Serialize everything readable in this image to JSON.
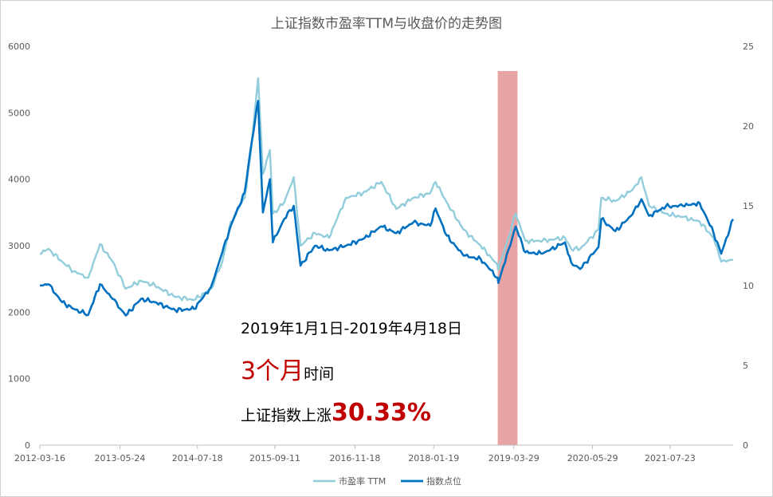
{
  "chart_data": {
    "type": "line",
    "title": "上证指数市盈率TTM与收盘价的走势图",
    "x_ticks": [
      "2012-03-16",
      "2013-05-24",
      "2014-07-18",
      "2015-09-11",
      "2016-11-18",
      "2018-01-19",
      "2019-03-29",
      "2020-05-29",
      "2021-07-23"
    ],
    "x_range": [
      "2012-03-16",
      "2022-06-30"
    ],
    "y_left": {
      "min": 0,
      "max": 6000,
      "ticks": [
        "0",
        "1000",
        "2000",
        "3000",
        "4000",
        "5000",
        "6000"
      ]
    },
    "y_right": {
      "min": 0,
      "max": 25,
      "ticks": [
        "0",
        "5",
        "10",
        "15",
        "20",
        "25"
      ]
    },
    "highlight": {
      "start": "2019-01-01",
      "end": "2019-04-18",
      "color": "#e8a4a4"
    },
    "series": [
      {
        "name": "市盈率 TTM",
        "axis": "right",
        "color": "#92cddc",
        "points": [
          [
            "2012-03-16",
            12.0
          ],
          [
            "2012-05-01",
            12.3
          ],
          [
            "2012-07-15",
            11.5
          ],
          [
            "2012-09-15",
            10.9
          ],
          [
            "2012-12-03",
            10.5
          ],
          [
            "2013-02-05",
            12.6
          ],
          [
            "2013-04-15",
            11.5
          ],
          [
            "2013-06-25",
            9.8
          ],
          [
            "2013-09-15",
            10.3
          ],
          [
            "2013-11-30",
            10.0
          ],
          [
            "2014-03-20",
            9.3
          ],
          [
            "2014-06-30",
            9.1
          ],
          [
            "2014-09-30",
            9.8
          ],
          [
            "2014-11-30",
            11.5
          ],
          [
            "2015-01-15",
            14.0
          ],
          [
            "2015-03-31",
            15.5
          ],
          [
            "2015-04-30",
            18.0
          ],
          [
            "2015-06-12",
            23.0
          ],
          [
            "2015-07-08",
            17.0
          ],
          [
            "2015-08-15",
            18.5
          ],
          [
            "2015-08-31",
            14.5
          ],
          [
            "2015-10-31",
            15.2
          ],
          [
            "2015-12-22",
            16.8
          ],
          [
            "2016-01-28",
            12.5
          ],
          [
            "2016-04-15",
            13.3
          ],
          [
            "2016-06-30",
            13.0
          ],
          [
            "2016-09-30",
            15.5
          ],
          [
            "2016-12-31",
            15.8
          ],
          [
            "2017-04-10",
            16.5
          ],
          [
            "2017-06-30",
            14.8
          ],
          [
            "2017-09-30",
            15.5
          ],
          [
            "2017-12-31",
            15.8
          ],
          [
            "2018-01-29",
            16.5
          ],
          [
            "2018-03-31",
            15.2
          ],
          [
            "2018-06-30",
            13.5
          ],
          [
            "2018-09-30",
            12.5
          ],
          [
            "2018-12-31",
            11.3
          ],
          [
            "2019-01-04",
            11.0
          ],
          [
            "2019-02-28",
            13.0
          ],
          [
            "2019-04-08",
            14.5
          ],
          [
            "2019-05-31",
            12.8
          ],
          [
            "2019-08-31",
            12.8
          ],
          [
            "2019-12-31",
            13.0
          ],
          [
            "2020-02-03",
            12.3
          ],
          [
            "2020-03-23",
            12.3
          ],
          [
            "2020-06-30",
            13.5
          ],
          [
            "2020-07-15",
            15.5
          ],
          [
            "2020-09-30",
            15.3
          ],
          [
            "2020-12-31",
            16.0
          ],
          [
            "2021-02-18",
            16.8
          ],
          [
            "2021-03-31",
            15.0
          ],
          [
            "2021-06-30",
            14.5
          ],
          [
            "2021-09-30",
            14.3
          ],
          [
            "2021-12-31",
            14.0
          ],
          [
            "2022-03-15",
            13.0
          ],
          [
            "2022-04-26",
            11.5
          ],
          [
            "2022-06-30",
            11.6
          ]
        ]
      },
      {
        "name": "指数点位",
        "axis": "left",
        "color": "#0070c0",
        "points": [
          [
            "2012-03-16",
            2400
          ],
          [
            "2012-05-01",
            2420
          ],
          [
            "2012-07-15",
            2150
          ],
          [
            "2012-09-15",
            2050
          ],
          [
            "2012-12-03",
            1960
          ],
          [
            "2013-02-05",
            2420
          ],
          [
            "2013-04-15",
            2200
          ],
          [
            "2013-06-25",
            1950
          ],
          [
            "2013-09-15",
            2200
          ],
          [
            "2013-11-30",
            2150
          ],
          [
            "2014-03-20",
            2030
          ],
          [
            "2014-06-30",
            2050
          ],
          [
            "2014-09-30",
            2380
          ],
          [
            "2014-11-30",
            2900
          ],
          [
            "2015-01-15",
            3300
          ],
          [
            "2015-03-31",
            3800
          ],
          [
            "2015-04-30",
            4400
          ],
          [
            "2015-06-12",
            5178
          ],
          [
            "2015-07-08",
            3500
          ],
          [
            "2015-08-15",
            4000
          ],
          [
            "2015-08-31",
            3050
          ],
          [
            "2015-10-31",
            3400
          ],
          [
            "2015-12-22",
            3600
          ],
          [
            "2016-01-28",
            2700
          ],
          [
            "2016-04-15",
            3000
          ],
          [
            "2016-06-30",
            2930
          ],
          [
            "2016-09-30",
            3000
          ],
          [
            "2016-12-31",
            3100
          ],
          [
            "2017-04-10",
            3290
          ],
          [
            "2017-06-30",
            3190
          ],
          [
            "2017-09-30",
            3350
          ],
          [
            "2017-12-31",
            3300
          ],
          [
            "2018-01-29",
            3560
          ],
          [
            "2018-03-31",
            3150
          ],
          [
            "2018-06-30",
            2850
          ],
          [
            "2018-09-30",
            2800
          ],
          [
            "2018-12-31",
            2520
          ],
          [
            "2019-01-04",
            2440
          ],
          [
            "2019-02-28",
            2940
          ],
          [
            "2019-04-08",
            3288
          ],
          [
            "2019-05-31",
            2900
          ],
          [
            "2019-08-31",
            2880
          ],
          [
            "2019-12-31",
            3050
          ],
          [
            "2020-02-03",
            2750
          ],
          [
            "2020-03-23",
            2650
          ],
          [
            "2020-06-30",
            2980
          ],
          [
            "2020-07-15",
            3400
          ],
          [
            "2020-09-30",
            3220
          ],
          [
            "2020-12-31",
            3470
          ],
          [
            "2021-02-18",
            3700
          ],
          [
            "2021-03-31",
            3450
          ],
          [
            "2021-06-30",
            3590
          ],
          [
            "2021-09-30",
            3600
          ],
          [
            "2021-12-31",
            3640
          ],
          [
            "2022-03-15",
            3200
          ],
          [
            "2022-04-26",
            2880
          ],
          [
            "2022-06-30",
            3400
          ]
        ]
      }
    ],
    "legend": {
      "position": "bottom"
    }
  },
  "annotations": {
    "range": "2019年1月1日-2019年4月18日",
    "duration_value": "3个月",
    "duration_suffix": "时间",
    "gain_prefix": "上证指数上涨",
    "gain_value": "30.33%"
  }
}
